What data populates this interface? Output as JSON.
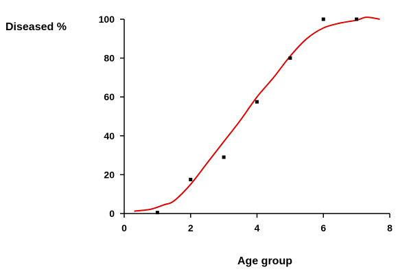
{
  "chart_data": {
    "type": "scatter",
    "ylabel": "Diseased %",
    "xlabel": "Age group",
    "xlim": [
      0,
      8
    ],
    "ylim": [
      0,
      100
    ],
    "x_ticks": [
      0,
      2,
      4,
      6,
      8
    ],
    "y_ticks": [
      0,
      20,
      40,
      60,
      80,
      100
    ],
    "grid": false,
    "series": [
      {
        "type": "scatter",
        "color": "#000000",
        "points": [
          {
            "x": 1,
            "y": 0.5
          },
          {
            "x": 2,
            "y": 17.5
          },
          {
            "x": 3,
            "y": 29
          },
          {
            "x": 4,
            "y": 57.5
          },
          {
            "x": 5,
            "y": 80
          },
          {
            "x": 6,
            "y": 100
          },
          {
            "x": 7,
            "y": 100
          }
        ]
      },
      {
        "type": "line",
        "color": "#e00000",
        "points": [
          {
            "x": 0.3,
            "y": 1.2
          },
          {
            "x": 0.8,
            "y": 2.2
          },
          {
            "x": 1.2,
            "y": 4.5
          },
          {
            "x": 1.5,
            "y": 6.5
          },
          {
            "x": 2,
            "y": 15
          },
          {
            "x": 2.5,
            "y": 26
          },
          {
            "x": 3,
            "y": 37
          },
          {
            "x": 3.5,
            "y": 48
          },
          {
            "x": 4,
            "y": 60
          },
          {
            "x": 4.5,
            "y": 70
          },
          {
            "x": 5,
            "y": 81
          },
          {
            "x": 5.5,
            "y": 90
          },
          {
            "x": 6,
            "y": 95.5
          },
          {
            "x": 6.5,
            "y": 98
          },
          {
            "x": 7,
            "y": 99.5
          },
          {
            "x": 7.3,
            "y": 101
          },
          {
            "x": 7.7,
            "y": 100
          }
        ]
      }
    ]
  }
}
